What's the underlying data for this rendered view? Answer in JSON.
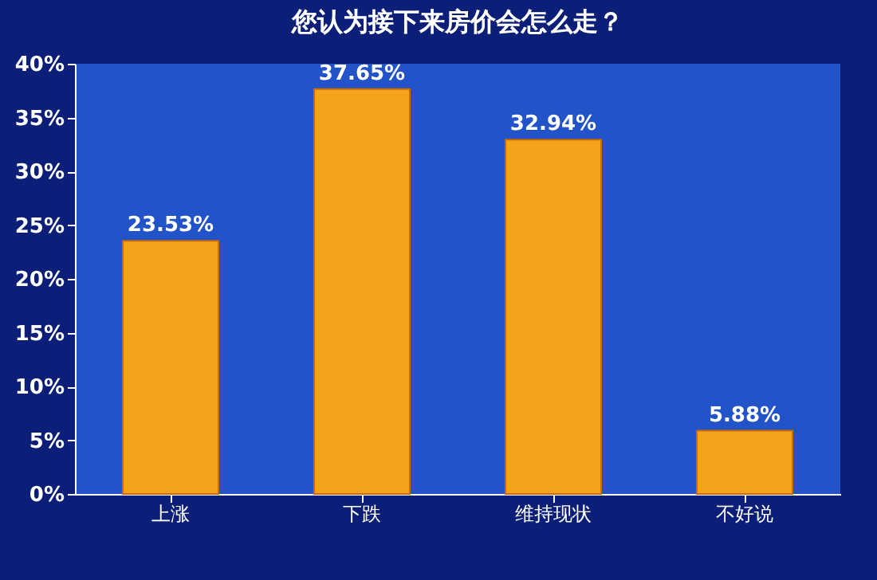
{
  "chart_data": {
    "type": "bar",
    "title": "您认为接下来房价会怎么走？",
    "categories": [
      "上涨",
      "下跌",
      "维持现状",
      "不好说"
    ],
    "values": [
      23.53,
      37.65,
      32.94,
      5.88
    ],
    "value_labels": [
      "23.53%",
      "37.65%",
      "32.94%",
      "5.88%"
    ],
    "color": "#f5a21c",
    "ylim": [
      0,
      40
    ],
    "yticks": [
      {
        "value": 0,
        "label": "0%"
      },
      {
        "value": 5,
        "label": "5%"
      },
      {
        "value": 10,
        "label": "10%"
      },
      {
        "value": 15,
        "label": "15%"
      },
      {
        "value": 20,
        "label": "20%"
      },
      {
        "value": 25,
        "label": "25%"
      },
      {
        "value": 30,
        "label": "30%"
      },
      {
        "value": 35,
        "label": "35%"
      },
      {
        "value": 40,
        "label": "40%"
      }
    ]
  }
}
